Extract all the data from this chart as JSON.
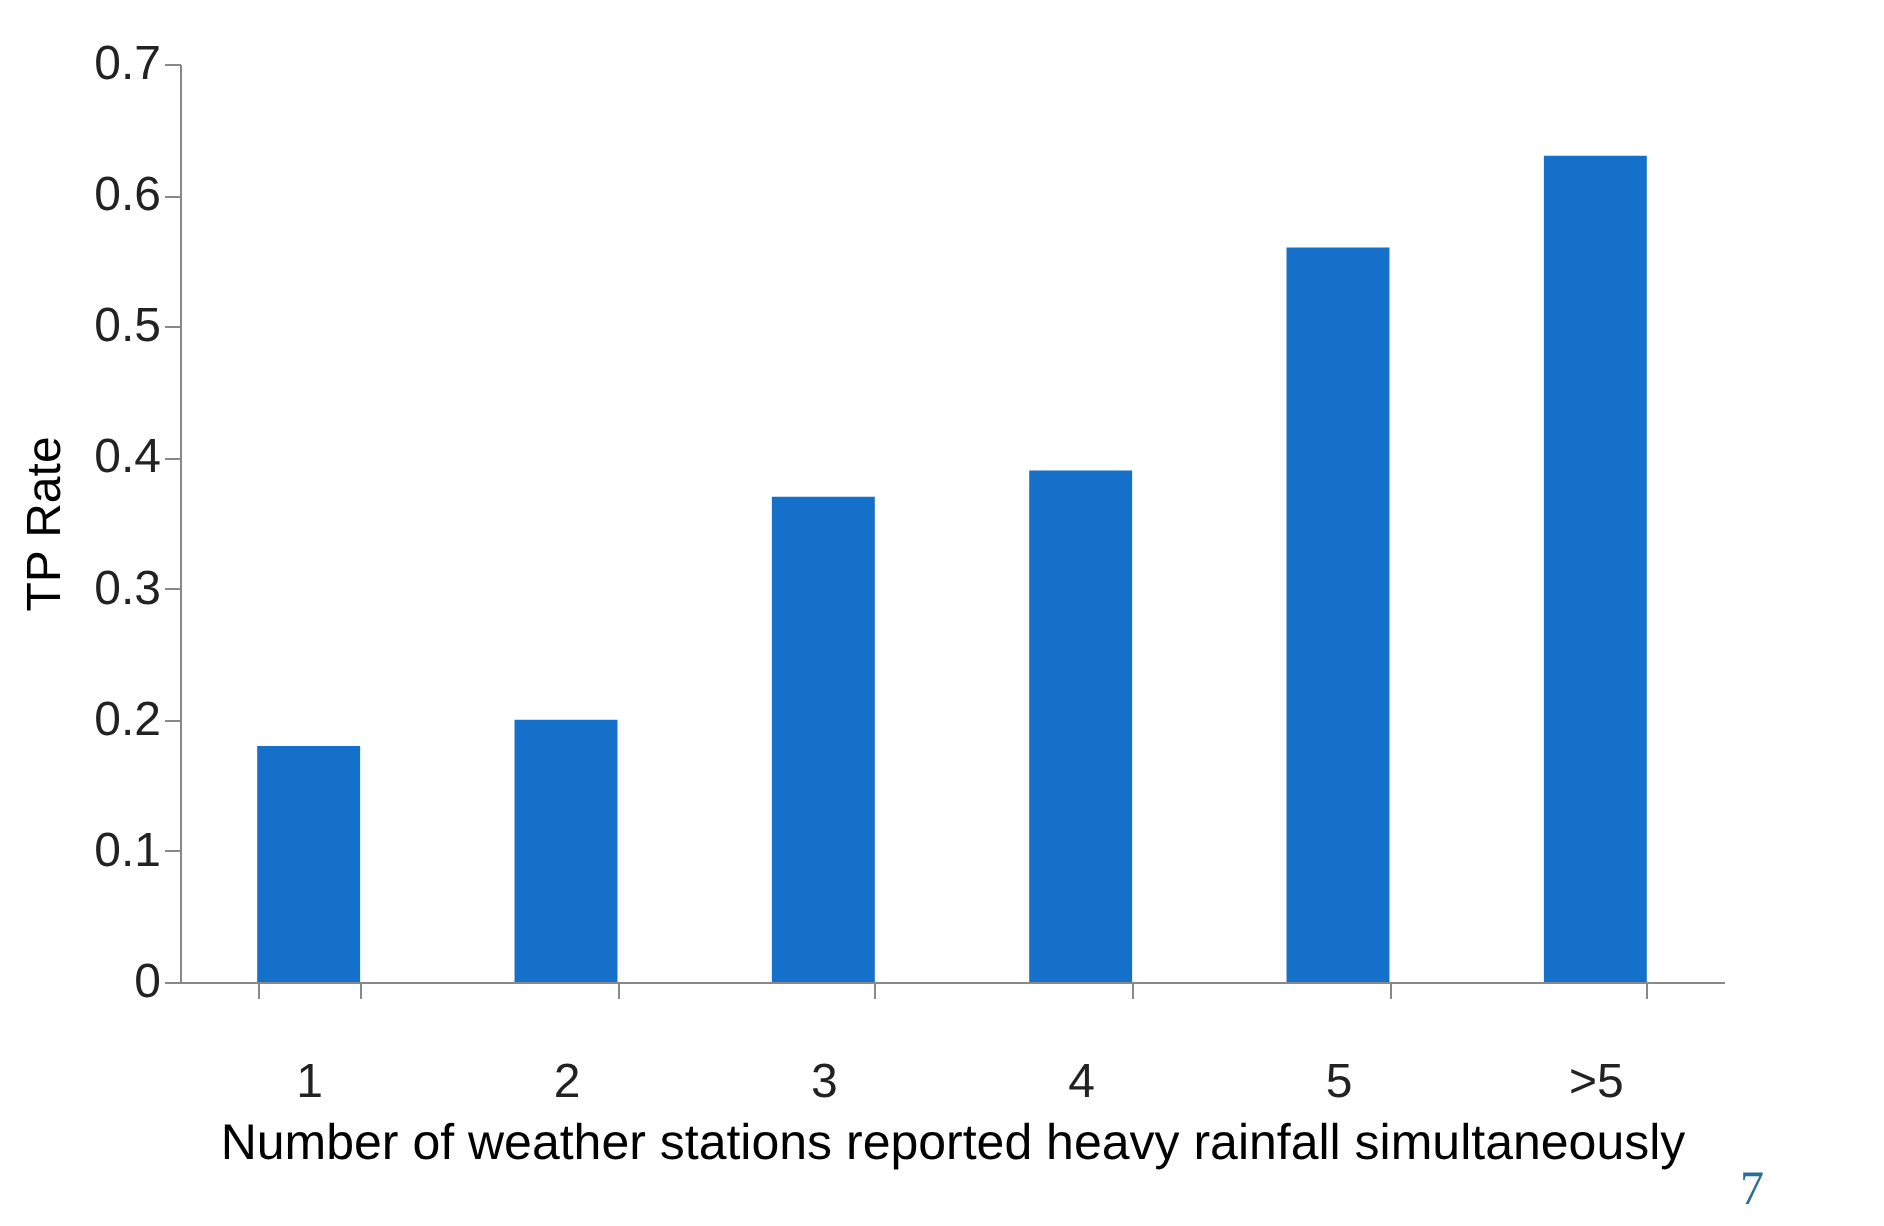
{
  "chart_data": {
    "type": "bar",
    "xlabel": "Number of  weather stations reported heavy rainfall simultaneously",
    "ylabel": "TP Rate",
    "categories": [
      "1",
      "2",
      "3",
      "4",
      "5",
      ">5"
    ],
    "values": [
      0.18,
      0.2,
      0.37,
      0.39,
      0.56,
      0.63
    ],
    "color": "#1470c8",
    "ylim": [
      0,
      0.7
    ],
    "yticks": [
      0,
      0.1,
      0.2,
      0.3,
      0.4,
      0.5,
      0.6,
      0.7
    ],
    "grid": false,
    "annotations": [
      "7"
    ]
  }
}
